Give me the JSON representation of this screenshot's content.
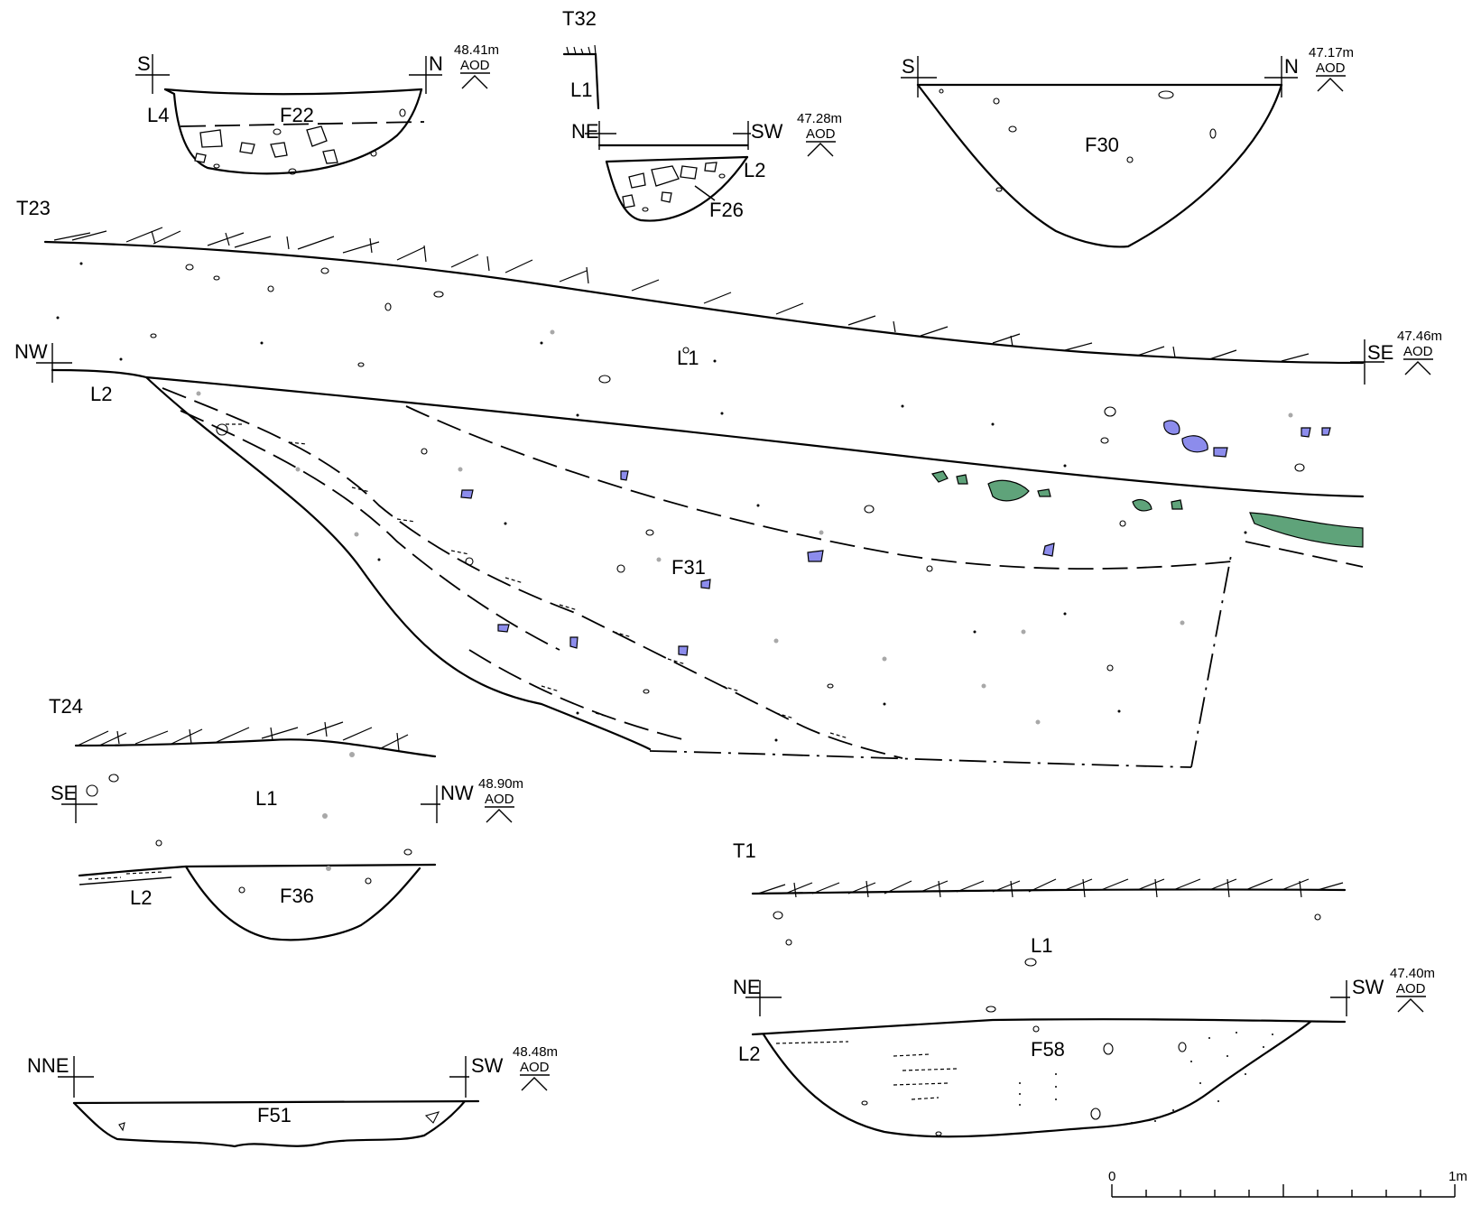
{
  "trenches": {
    "t32": "T32",
    "t23": "T23",
    "t24": "T24",
    "t1": "T1"
  },
  "features": {
    "f22": "F22",
    "f26": "F26",
    "f30": "F30",
    "f31": "F31",
    "f36": "F36",
    "f51": "F51",
    "f58": "F58"
  },
  "layers": {
    "l1": "L1",
    "l2": "L2",
    "l4": "L4"
  },
  "orientation": {
    "s": "S",
    "n": "N",
    "ne": "NE",
    "sw": "SW",
    "nw": "NW",
    "se": "SE",
    "nne": "NNE"
  },
  "datums": {
    "f22": "48.41m",
    "f26": "47.28m",
    "f30": "47.17m",
    "t23": "47.46m",
    "t24": "48.90m",
    "f51": "48.48m",
    "t1": "47.40m",
    "aod": "AOD"
  },
  "scale_bar": {
    "start": "0",
    "end": "1m",
    "divisions": 10
  },
  "colors": {
    "blue_inclusions": "#8c8cec",
    "green_inclusions": "#5fa37a",
    "grey_flecks": "#a8a8a8"
  }
}
